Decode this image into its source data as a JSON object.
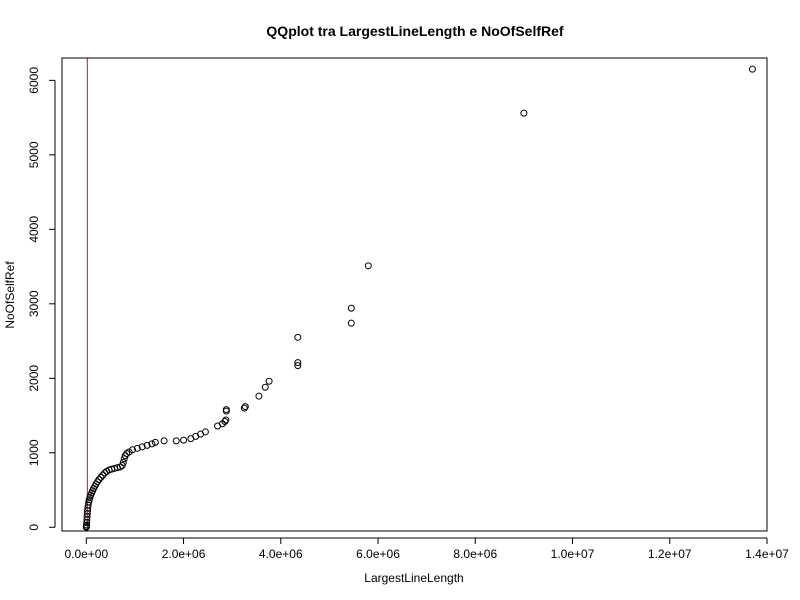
{
  "chart_data": {
    "type": "scatter",
    "title": "QQplot tra LargestLineLength e NoOfSelfRef",
    "xlabel": "LargestLineLength",
    "ylabel": "NoOfSelfRef",
    "xlim": [
      -500000,
      14000000
    ],
    "ylim": [
      -50,
      6300
    ],
    "xticks": [
      0,
      2000000,
      4000000,
      6000000,
      8000000,
      10000000,
      12000000,
      14000000
    ],
    "xtick_labels": [
      "0.0e+00",
      "2.0e+06",
      "4.0e+06",
      "6.0e+06",
      "8.0e+06",
      "1.0e+07",
      "1.2e+07",
      "1.4e+07"
    ],
    "yticks": [
      0,
      1000,
      2000,
      3000,
      4000,
      5000,
      6000
    ],
    "ytick_labels": [
      "0",
      "1000",
      "2000",
      "3000",
      "4000",
      "5000",
      "6000"
    ],
    "reference_line": {
      "color": "#ff0000",
      "description": "qq line (nearly vertical)",
      "x": [
        0,
        0
      ],
      "y": [
        -50,
        6300
      ]
    },
    "marker": "open-circle",
    "series": [
      {
        "points": [
          [
            0,
            0
          ],
          [
            2000,
            10
          ],
          [
            5000,
            30
          ],
          [
            8000,
            60
          ],
          [
            12000,
            100
          ],
          [
            16000,
            140
          ],
          [
            20000,
            180
          ],
          [
            25000,
            220
          ],
          [
            30000,
            260
          ],
          [
            40000,
            300
          ],
          [
            50000,
            340
          ],
          [
            60000,
            370
          ],
          [
            75000,
            400
          ],
          [
            90000,
            430
          ],
          [
            110000,
            460
          ],
          [
            130000,
            490
          ],
          [
            150000,
            520
          ],
          [
            175000,
            550
          ],
          [
            200000,
            580
          ],
          [
            230000,
            610
          ],
          [
            260000,
            640
          ],
          [
            300000,
            670
          ],
          [
            340000,
            700
          ],
          [
            380000,
            730
          ],
          [
            420000,
            750
          ],
          [
            470000,
            770
          ],
          [
            520000,
            780
          ],
          [
            580000,
            790
          ],
          [
            640000,
            800
          ],
          [
            700000,
            810
          ],
          [
            740000,
            830
          ],
          [
            760000,
            870
          ],
          [
            780000,
            920
          ],
          [
            800000,
            960
          ],
          [
            830000,
            990
          ],
          [
            880000,
            1010
          ],
          [
            950000,
            1040
          ],
          [
            1050000,
            1060
          ],
          [
            1150000,
            1080
          ],
          [
            1250000,
            1100
          ],
          [
            1350000,
            1120
          ],
          [
            1420000,
            1140
          ],
          [
            1600000,
            1160
          ],
          [
            1850000,
            1160
          ],
          [
            2000000,
            1170
          ],
          [
            2150000,
            1190
          ],
          [
            2250000,
            1220
          ],
          [
            2350000,
            1250
          ],
          [
            2450000,
            1280
          ],
          [
            2700000,
            1360
          ],
          [
            2800000,
            1390
          ],
          [
            2850000,
            1420
          ],
          [
            2870000,
            1440
          ],
          [
            2880000,
            1560
          ],
          [
            2880000,
            1580
          ],
          [
            3250000,
            1600
          ],
          [
            3270000,
            1620
          ],
          [
            3550000,
            1760
          ],
          [
            3680000,
            1880
          ],
          [
            3760000,
            1960
          ],
          [
            4350000,
            2170
          ],
          [
            4350000,
            2210
          ],
          [
            4350000,
            2550
          ],
          [
            5450000,
            2740
          ],
          [
            5450000,
            2940
          ],
          [
            5800000,
            3510
          ],
          [
            9000000,
            5560
          ],
          [
            13700000,
            6150
          ]
        ]
      }
    ]
  }
}
